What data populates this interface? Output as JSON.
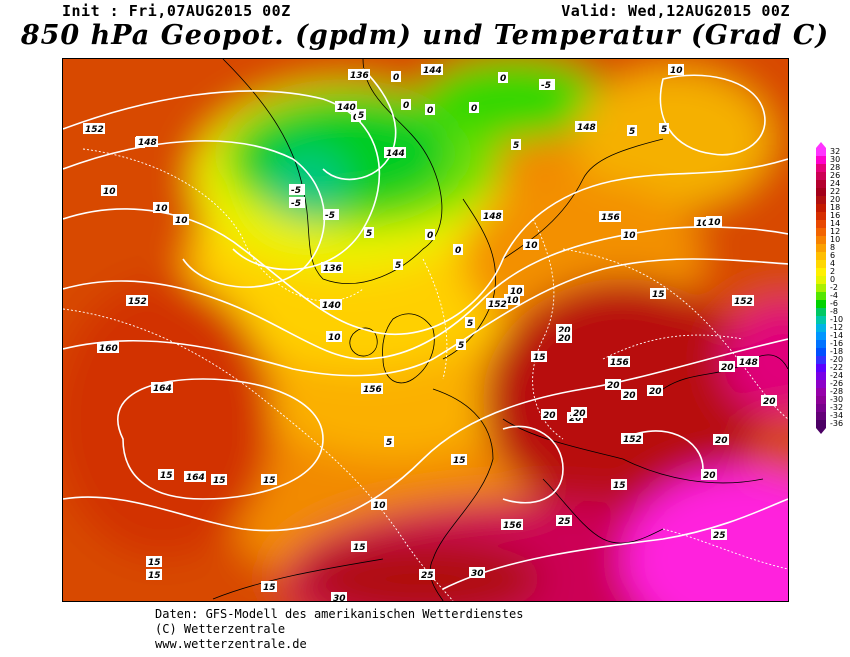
{
  "header": {
    "init": "Init : Fri,07AUG2015 00Z",
    "valid": "Valid: Wed,12AUG2015 00Z",
    "title": "850 hPa Geopot. (gpdm) und Temperatur (Grad C)"
  },
  "legend": {
    "labels": [
      "32",
      "30",
      "28",
      "26",
      "24",
      "22",
      "20",
      "18",
      "16",
      "14",
      "12",
      "10",
      "8",
      "6",
      "4",
      "2",
      "0",
      "-2",
      "-4",
      "-6",
      "-8",
      "-10",
      "-12",
      "-14",
      "-16",
      "-18",
      "-20",
      "-22",
      "-24",
      "-26",
      "-28",
      "-30",
      "-32",
      "-34",
      "-36"
    ],
    "colors": [
      "#ff33ff",
      "#ff00cc",
      "#e6007a",
      "#cc0055",
      "#b3002d",
      "#a3001a",
      "#b01010",
      "#c41a00",
      "#d62e00",
      "#e84800",
      "#f26400",
      "#f78200",
      "#fba000",
      "#ffbe00",
      "#ffd700",
      "#fff000",
      "#e6f500",
      "#aaf000",
      "#55e600",
      "#00d200",
      "#00c864",
      "#00c8aa",
      "#00b4e6",
      "#0096ff",
      "#0073ff",
      "#0050ff",
      "#3232ff",
      "#5a00ff",
      "#7800e6",
      "#8c00c8",
      "#9600aa",
      "#8c0096",
      "#78008c",
      "#640078",
      "#4b0064"
    ]
  },
  "map": {
    "temperature_labels": [
      "-5",
      "-5",
      "-5",
      "-5",
      "0",
      "0",
      "0",
      "0",
      "0",
      "0",
      "0",
      "0",
      "5",
      "5",
      "5",
      "5",
      "5",
      "5",
      "5",
      "5",
      "5",
      "5",
      "10",
      "10",
      "10",
      "10",
      "10",
      "10",
      "10",
      "10",
      "10",
      "10",
      "10",
      "10",
      "15",
      "15",
      "15",
      "15",
      "15",
      "15",
      "15",
      "15",
      "15",
      "15",
      "15",
      "20",
      "20",
      "20",
      "20",
      "20",
      "20",
      "20",
      "20",
      "20",
      "20",
      "20",
      "20",
      "25",
      "25",
      "25",
      "30",
      "30"
    ],
    "geopotential_labels": [
      "136",
      "136",
      "140",
      "140",
      "144",
      "144",
      "148",
      "148",
      "148",
      "148",
      "152",
      "152",
      "152",
      "152",
      "152",
      "156",
      "156",
      "156",
      "156",
      "160",
      "164",
      "164"
    ]
  },
  "footer": {
    "line1": "Daten: GFS-Modell des amerikanischen Wetterdienstes",
    "line2": "(C) Wetterzentrale",
    "line3": "www.wetterzentrale.de"
  }
}
